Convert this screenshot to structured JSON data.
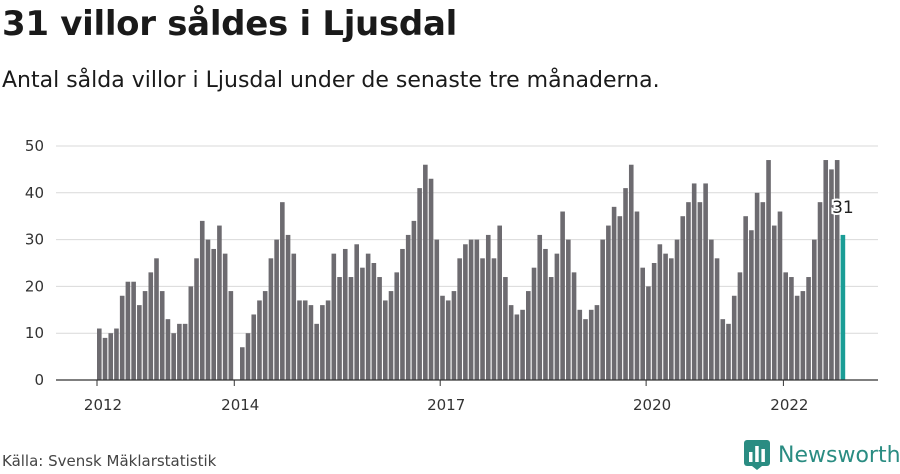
{
  "title": "31 villor såldes i Ljusdal",
  "subtitle": "Antal sålda villor i Ljusdal under de senaste tre månaderna.",
  "source": "Källa: Svensk Mäklarstatistik",
  "brand": {
    "name": "Newsworthy",
    "color": "#2a8c82",
    "icon": "newsworthy-logo-icon"
  },
  "colors": {
    "bar": "#6d6b70",
    "highlight": "#1a9d96",
    "grid": "#d9d9d9",
    "axis": "#333333"
  },
  "chart_data": {
    "type": "bar",
    "title": "31 villor såldes i Ljusdal",
    "subtitle": "Antal sålda villor i Ljusdal under de senaste tre månaderna.",
    "xlabel": "",
    "ylabel": "",
    "ylim": [
      0,
      50
    ],
    "yticks": [
      0,
      10,
      20,
      30,
      40,
      50
    ],
    "grid": true,
    "x_start": "2012-01",
    "x_end": "2022-12",
    "x_ticks": [
      {
        "label": "2012",
        "month": "2012-01"
      },
      {
        "label": "2014",
        "month": "2014-01"
      },
      {
        "label": "2017",
        "month": "2017-01"
      },
      {
        "label": "2020",
        "month": "2020-01"
      },
      {
        "label": "2022",
        "month": "2022-01"
      }
    ],
    "values": [
      11,
      9,
      10,
      11,
      18,
      21,
      21,
      16,
      19,
      23,
      26,
      19,
      13,
      10,
      12,
      12,
      20,
      26,
      34,
      30,
      28,
      33,
      27,
      19,
      0,
      7,
      10,
      14,
      17,
      19,
      26,
      30,
      38,
      31,
      27,
      17,
      17,
      16,
      12,
      16,
      17,
      27,
      22,
      28,
      22,
      29,
      24,
      27,
      25,
      22,
      17,
      19,
      23,
      28,
      31,
      34,
      41,
      46,
      43,
      30,
      18,
      17,
      19,
      26,
      29,
      30,
      30,
      26,
      31,
      26,
      33,
      22,
      16,
      14,
      15,
      19,
      24,
      31,
      28,
      22,
      27,
      36,
      30,
      23,
      15,
      13,
      15,
      16,
      30,
      33,
      37,
      35,
      41,
      46,
      36,
      24,
      20,
      25,
      29,
      27,
      26,
      30,
      35,
      38,
      42,
      38,
      42,
      30,
      26,
      13,
      12,
      18,
      23,
      35,
      32,
      40,
      38,
      47,
      33,
      36,
      23,
      22,
      18,
      19,
      22,
      30,
      38,
      47,
      45,
      47,
      31
    ],
    "highlight_last": true,
    "annotation": {
      "label": "31",
      "value": 31
    }
  }
}
